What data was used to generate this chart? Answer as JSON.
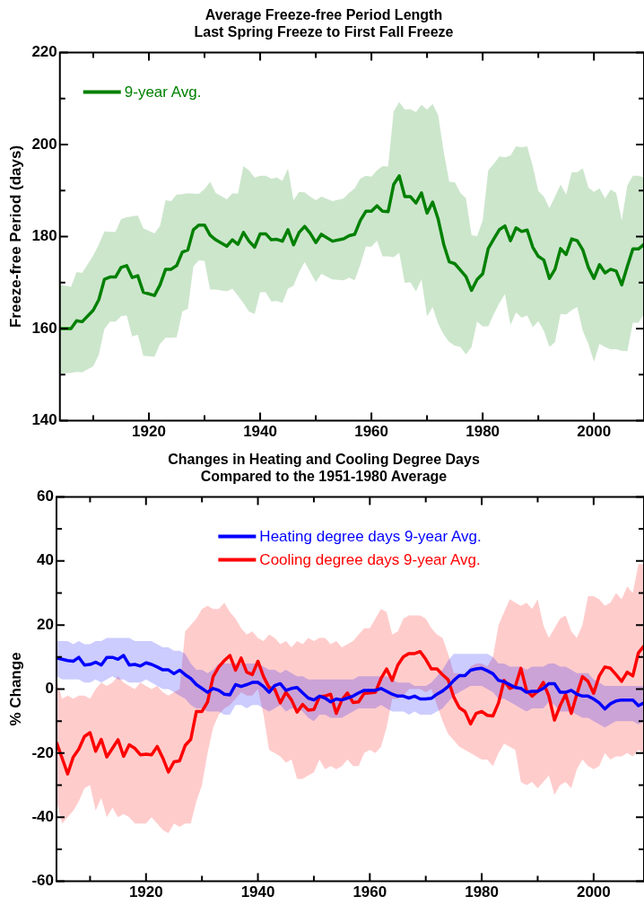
{
  "chart_data": [
    {
      "type": "line",
      "title": "Average Freeze-free Period Length",
      "subtitle": "Last Spring Freeze to First Fall Freeze",
      "ylabel": "Freeze-free Period (days)",
      "legend": "top left",
      "xlim": [
        1904,
        2009
      ],
      "xticks": [
        {
          "value": 1910,
          "label": null
        },
        1920,
        {
          "value": 1930,
          "label": null
        },
        1940,
        {
          "value": 1950,
          "label": null
        },
        1960,
        {
          "value": 1970,
          "label": null
        },
        1980,
        {
          "value": 1990,
          "label": null
        },
        2000
      ],
      "ylim": [
        140,
        220
      ],
      "yticks": [
        140,
        {
          "value": 150,
          "label": null
        },
        160,
        {
          "value": 170,
          "label": null
        },
        180,
        {
          "value": 190,
          "label": null
        },
        200,
        {
          "value": 210,
          "label": null
        },
        220
      ],
      "x": [
        1904,
        1906,
        1907,
        1908,
        1910,
        1911,
        1912,
        1913,
        1914,
        1915,
        1916,
        1917,
        1918,
        1919,
        1921,
        1922,
        1923,
        1924,
        1925,
        1926,
        1927,
        1928,
        1929,
        1930,
        1931,
        1932,
        1934,
        1935,
        1936,
        1937,
        1938,
        1939,
        1940,
        1941,
        1942,
        1943,
        1944,
        1945,
        1946,
        1947,
        1948,
        1949,
        1950,
        1951,
        1953,
        1955,
        1956,
        1957,
        1958,
        1959,
        1960,
        1961,
        1962,
        1963,
        1964,
        1965,
        1966,
        1967,
        1968,
        1969,
        1970,
        1971,
        1972,
        1973,
        1974,
        1975,
        1976,
        1977,
        1978,
        1979,
        1980,
        1981,
        1982,
        1983,
        1984,
        1985,
        1986,
        1987,
        1988,
        1989,
        1990,
        1991,
        1992,
        1993,
        1994,
        1995,
        1996,
        1997,
        1998,
        1999,
        2000,
        2001,
        2002,
        2003,
        2004,
        2005,
        2006,
        2007,
        2008,
        2009
      ],
      "series": [
        {
          "name": "9-year Avg.",
          "color": "#008000",
          "values": [
            160,
            160,
            161.7,
            161.5,
            164,
            166.3,
            170.7,
            171.2,
            171.2,
            173.3,
            173.7,
            171.1,
            171.5,
            167.9,
            167.2,
            169.5,
            172.9,
            172.9,
            173.7,
            176.6,
            177.1,
            181.5,
            182.5,
            182.5,
            180.3,
            179.3,
            177.9,
            179.3,
            178.3,
            180.9,
            179,
            177.7,
            180.6,
            180.6,
            179.3,
            179.4,
            179,
            181.5,
            178.2,
            180.9,
            182.2,
            180.7,
            178.7,
            180.5,
            179,
            179.5,
            180.2,
            180.5,
            183.5,
            185.5,
            185.5,
            186.7,
            185.5,
            185.4,
            191.3,
            193.2,
            188.7,
            188.7,
            187.3,
            189.5,
            185.1,
            187.5,
            183.8,
            178.3,
            174.5,
            174.1,
            172.7,
            171.3,
            168.3,
            170.7,
            171.9,
            177.4,
            179.5,
            181.5,
            182.3,
            179.1,
            181.9,
            181.1,
            181.4,
            177.7,
            175.7,
            174.9,
            170.9,
            172.9,
            177.4,
            176.1,
            179.5,
            179.1,
            177.1,
            173.3,
            170.9,
            173.9,
            172.1,
            172.9,
            172.5,
            169.5,
            173.5,
            177.3,
            177.3,
            178.3
          ],
          "upper": [
            169.5,
            169.1,
            172.3,
            172.1,
            175.9,
            178.3,
            181.1,
            181,
            181,
            183.8,
            184.2,
            184.4,
            184.6,
            181.8,
            180.7,
            182.3,
            187.9,
            187.7,
            189.1,
            189.2,
            189.4,
            189.3,
            189.3,
            190.3,
            191.9,
            189.5,
            188.1,
            189.4,
            189.3,
            195.3,
            194.4,
            192.8,
            193.2,
            193.2,
            192.6,
            192.8,
            192.1,
            194.8,
            187.9,
            189.7,
            189.6,
            188.7,
            187.9,
            188.7,
            187.7,
            188.3,
            189.5,
            190.5,
            192.6,
            193.2,
            193,
            194.4,
            195.3,
            195.2,
            207.2,
            209.2,
            207.6,
            207.7,
            207,
            208.6,
            207.6,
            208.8,
            206.4,
            198.4,
            191.9,
            191.8,
            189.5,
            188.3,
            180.3,
            180.1,
            183.5,
            194.4,
            195.8,
            197.4,
            197.2,
            197.6,
            199.6,
            199.4,
            199.6,
            195.3,
            189.9,
            188.7,
            186.2,
            188.7,
            191.3,
            189.1,
            194,
            194,
            194.8,
            190.7,
            189.7,
            190.5,
            188.3,
            190.2,
            189.5,
            183.5,
            191.1,
            193.2,
            193.2,
            192.8
          ],
          "lower": [
            150.2,
            150.4,
            150.6,
            150.5,
            151.8,
            154.3,
            159.9,
            161.5,
            161.5,
            162.7,
            162.9,
            158.3,
            158.7,
            154.1,
            153.9,
            156.7,
            158,
            158,
            158.1,
            163.7,
            164.3,
            173.5,
            174.9,
            174.7,
            168.5,
            168.5,
            168.1,
            168.7,
            167.2,
            165.5,
            163.7,
            163.2,
            167.9,
            167.9,
            165.9,
            166,
            165.6,
            168.7,
            169.3,
            172.3,
            174.5,
            172.3,
            170.1,
            171.9,
            170.7,
            170.5,
            171.1,
            170.5,
            173.9,
            177.8,
            177.8,
            179.1,
            175.7,
            175.7,
            175.5,
            176.5,
            169.9,
            170.1,
            168.1,
            170.7,
            162.7,
            164.7,
            161.1,
            158.7,
            157.1,
            156.3,
            156,
            154.4,
            156,
            161.5,
            160.5,
            160.5,
            163.2,
            165.5,
            167.5,
            160.8,
            163.5,
            162.4,
            162.9,
            160.3,
            161.6,
            159.5,
            156,
            157.1,
            163.2,
            163.1,
            164,
            164.7,
            159.5,
            156.7,
            152.8,
            156.7,
            156,
            155.5,
            155.5,
            155.2,
            155.1,
            161.3,
            161.3,
            163.2
          ]
        }
      ]
    },
    {
      "type": "line",
      "title": "Changes in Heating and Cooling Degree Days",
      "subtitle": "Compared to the 1951-1980 Average",
      "ylabel": "% Change",
      "legend": "top",
      "xlim": [
        1904,
        2009
      ],
      "xticks": [
        {
          "value": 1910,
          "label": null
        },
        1920,
        {
          "value": 1930,
          "label": null
        },
        1940,
        {
          "value": 1950,
          "label": null
        },
        1960,
        {
          "value": 1970,
          "label": null
        },
        1980,
        {
          "value": 1990,
          "label": null
        },
        2000
      ],
      "ylim": [
        -60,
        60
      ],
      "yticks": [
        -60,
        {
          "value": -50,
          "label": null
        },
        -40,
        {
          "value": -30,
          "label": null
        },
        -20,
        {
          "value": -10,
          "label": null
        },
        0,
        {
          "value": 10,
          "label": null
        },
        20,
        {
          "value": 30,
          "label": null
        },
        40,
        {
          "value": 50,
          "label": null
        },
        60
      ],
      "x": [
        1904,
        1905,
        1906,
        1907,
        1908,
        1909,
        1910,
        1911,
        1912,
        1913,
        1914,
        1915,
        1916,
        1917,
        1918,
        1919,
        1920,
        1921,
        1922,
        1923,
        1924,
        1925,
        1926,
        1927,
        1928,
        1929,
        1930,
        1931,
        1932,
        1933,
        1934,
        1935,
        1936,
        1937,
        1938,
        1939,
        1940,
        1941,
        1942,
        1943,
        1944,
        1945,
        1946,
        1947,
        1948,
        1949,
        1950,
        1951,
        1952,
        1953,
        1954,
        1955,
        1956,
        1957,
        1958,
        1959,
        1960,
        1961,
        1962,
        1963,
        1964,
        1965,
        1966,
        1967,
        1968,
        1969,
        1970,
        1971,
        1972,
        1973,
        1974,
        1975,
        1976,
        1977,
        1978,
        1979,
        1980,
        1981,
        1982,
        1983,
        1984,
        1985,
        1986,
        1987,
        1988,
        1989,
        1990,
        1991,
        1992,
        1993,
        1994,
        1995,
        1996,
        1997,
        1998,
        1999,
        2000,
        2001,
        2002,
        2003,
        2004,
        2005,
        2006,
        2007,
        2008,
        2009
      ],
      "series": [
        {
          "name": "Heating degree days 9-year Avg.",
          "color": "#0000ff",
          "values": [
            9.7,
            9.3,
            8.9,
            8.7,
            9.9,
            7.5,
            7.7,
            8.4,
            7.5,
            9.9,
            9.9,
            9.3,
            10.5,
            7.5,
            7.7,
            7.2,
            8.2,
            7.7,
            6.9,
            6,
            6,
            4.8,
            5.9,
            4.5,
            3.3,
            1.4,
            0.2,
            -1,
            0.2,
            -0.4,
            -1.6,
            -1.8,
            1.4,
            0.8,
            1.4,
            2.1,
            2.1,
            0.8,
            -1,
            1.1,
            1.7,
            -0.4,
            0.2,
            0.5,
            -1.2,
            -2.8,
            -3.4,
            -2.2,
            -2.8,
            -4,
            -3.1,
            -3.4,
            -2.8,
            -2.2,
            -1.2,
            -0.4,
            -0.4,
            -0.4,
            0.2,
            -0.7,
            -1.6,
            -2.2,
            -2.2,
            -2.8,
            -2.2,
            -3.1,
            -3.1,
            -2.9,
            -1.6,
            -0.6,
            0.8,
            2.7,
            4.2,
            4.2,
            5.9,
            6.3,
            6.5,
            5.7,
            4.8,
            2.7,
            2.3,
            1.4,
            0.5,
            0.2,
            -1,
            -0.7,
            -0.7,
            0.2,
            1.7,
            1.7,
            -1,
            -1,
            -0.4,
            -1.6,
            -2.2,
            -2.2,
            -3.1,
            -4.3,
            -6.2,
            -4.6,
            -3.7,
            -3.4,
            -3.4,
            -3.4,
            -5.2,
            -4.3
          ],
          "upper": [
            15,
            15,
            15,
            14,
            15,
            14,
            14,
            15,
            15,
            16,
            16,
            16,
            16,
            16,
            15,
            15,
            15,
            15,
            14,
            13,
            13,
            12,
            12,
            11,
            8,
            6,
            6,
            5,
            6,
            8,
            8,
            8,
            8,
            8,
            8,
            8,
            8,
            7,
            6,
            6,
            5,
            6,
            5,
            4,
            4,
            3,
            3,
            3,
            3,
            3,
            3,
            3,
            3,
            3,
            4,
            4,
            4,
            4,
            4,
            4,
            3,
            2,
            2,
            2,
            1,
            1,
            1,
            2,
            4,
            6,
            9,
            11,
            11,
            11,
            11,
            11,
            11,
            11,
            10,
            8,
            8,
            7,
            7,
            7,
            6,
            7,
            7,
            7,
            8,
            8,
            7,
            7,
            6,
            5,
            5,
            5,
            3,
            2,
            1,
            1,
            1,
            1,
            1,
            1,
            1,
            1
          ],
          "lower": [
            4,
            3,
            3,
            3,
            3,
            2,
            2,
            3,
            2,
            3,
            4,
            3,
            3,
            2,
            2,
            2,
            3,
            2,
            1,
            0,
            0,
            -1,
            -2,
            -3,
            -5,
            -6,
            -6,
            -7,
            -7,
            -7,
            -8,
            -8,
            -5,
            -5,
            -6,
            -5,
            -5,
            -6,
            -7,
            -6,
            -5,
            -7,
            -6,
            -6,
            -7,
            -9,
            -10,
            -8,
            -8,
            -9,
            -9,
            -9,
            -8,
            -7,
            -6,
            -6,
            -6,
            -6,
            -5,
            -6,
            -7,
            -7,
            -7,
            -8,
            -7,
            -8,
            -8,
            -8,
            -7,
            -6,
            -4,
            -2,
            -1,
            0,
            1,
            1,
            1,
            0,
            -1,
            -3,
            -3,
            -4,
            -5,
            -6,
            -7,
            -6,
            -6,
            -6,
            -4,
            -5,
            -7,
            -7,
            -7,
            -8,
            -9,
            -9,
            -10,
            -11,
            -12,
            -11,
            -10,
            -10,
            -10,
            -10,
            -11,
            -10
          ]
        },
        {
          "name": "Cooling degree days 9-year Avg.",
          "color": "#ff0000",
          "values": [
            -16.6,
            -21.5,
            -26.5,
            -21.2,
            -18.7,
            -14.8,
            -13.6,
            -19.4,
            -15.7,
            -21.2,
            -18.5,
            -15.8,
            -21,
            -17.4,
            -18.5,
            -20.5,
            -20.3,
            -20.5,
            -17.9,
            -21.5,
            -25.9,
            -22.7,
            -22.4,
            -17.6,
            -15.7,
            -7,
            -7,
            -4,
            3.9,
            6.9,
            8.9,
            10.5,
            5.9,
            9.7,
            5.3,
            4.5,
            8.7,
            3.9,
            0.5,
            0,
            -4.3,
            -1,
            -3.4,
            -7.2,
            -4.8,
            -6.6,
            -6.4,
            -2.4,
            -2.2,
            -1.6,
            -7.6,
            -3.4,
            -1.2,
            -4.2,
            -4,
            -1.3,
            -1.2,
            -1,
            3.3,
            6.3,
            2.7,
            7.5,
            10.1,
            11.1,
            11.1,
            11.7,
            9.3,
            6.3,
            6.3,
            4.5,
            2.9,
            -2.5,
            -5.8,
            -7,
            -10.9,
            -7.6,
            -7,
            -8.2,
            -8.4,
            -4.3,
            2.7,
            0.2,
            0.8,
            6.5,
            -0.4,
            -2.2,
            -0.7,
            2.1,
            -2.2,
            -9.7,
            -5.2,
            -1.6,
            -7.6,
            -1.6,
            3.9,
            2.4,
            -1.3,
            4.1,
            6.9,
            6.5,
            4.5,
            2.4,
            5.3,
            4.1,
            11.3,
            13.5
          ],
          "upper": [
            3,
            -3,
            -2,
            -3,
            -2,
            -2,
            -3,
            0,
            2,
            1,
            2,
            4,
            2,
            1,
            0,
            2,
            1,
            0,
            1,
            -1,
            -2,
            -1,
            0,
            18,
            20,
            22,
            25,
            26,
            25,
            25,
            27,
            24,
            22,
            19,
            17,
            18,
            16,
            15,
            17,
            16,
            14,
            15,
            13,
            15,
            14,
            16,
            15,
            16,
            16,
            14,
            15,
            13,
            14,
            15,
            17,
            19,
            19,
            22,
            25,
            24,
            17,
            18,
            22,
            23,
            23,
            23,
            22,
            19,
            17,
            16,
            11,
            5,
            5,
            4,
            7,
            8,
            8,
            7,
            10,
            20,
            24,
            28,
            27,
            26,
            27,
            25,
            28,
            20,
            16,
            19,
            22,
            23,
            18,
            16,
            20,
            29,
            29,
            28,
            26,
            27,
            30,
            28,
            32,
            30,
            39,
            39
          ],
          "lower": [
            -35,
            -42,
            -40,
            -38,
            -35,
            -31,
            -30,
            -38,
            -34,
            -40,
            -37,
            -40,
            -39,
            -40,
            -42,
            -42,
            -42,
            -40,
            -42,
            -44,
            -45,
            -42,
            -43,
            -42,
            -42,
            -35,
            -30,
            -20,
            -12,
            -8,
            -6,
            -5,
            -3,
            -1,
            -2,
            -2,
            0,
            -8,
            -19,
            -20,
            -21,
            -23,
            -22,
            -28,
            -28,
            -27,
            -26,
            -22,
            -25,
            -24,
            -25,
            -24,
            -22,
            -24,
            -24,
            -20,
            -19,
            -20,
            -18,
            -12,
            -3,
            -3,
            -2,
            0,
            0,
            0,
            -1,
            0,
            -5,
            -10,
            -14,
            -16,
            -18,
            -19,
            -20,
            -21,
            -22,
            -22,
            -24,
            -20,
            -17,
            -18,
            -19,
            -29,
            -30,
            -29,
            -31,
            -29,
            -27,
            -33,
            -30,
            -29,
            -31,
            -25,
            -22,
            -24,
            -25,
            -24,
            -20,
            -22,
            -21,
            -21,
            -20,
            -21,
            -19,
            -20
          ]
        }
      ]
    }
  ]
}
